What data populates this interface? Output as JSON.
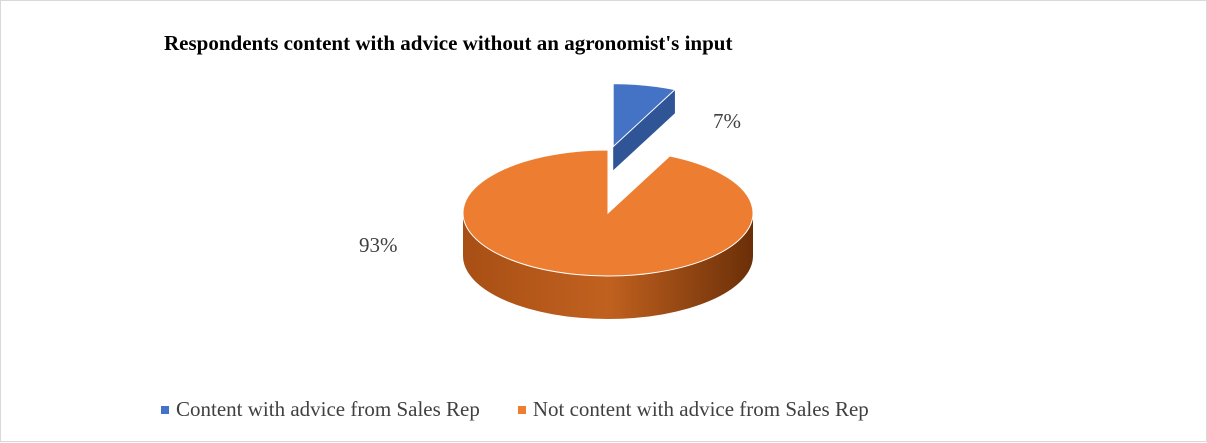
{
  "chart_data": {
    "type": "pie",
    "title": "Respondents content with advice without an agronomist's input",
    "slices": [
      {
        "label": "Content with advice from Sales Rep",
        "value": 7,
        "display": "7%",
        "color": "#4472c4",
        "exploded": true
      },
      {
        "label": "Not content with advice from Sales Rep",
        "value": 93,
        "display": "93%",
        "color": "#ed7d31",
        "exploded": false
      }
    ],
    "style": "3d",
    "legend": {
      "position": "bottom"
    }
  }
}
